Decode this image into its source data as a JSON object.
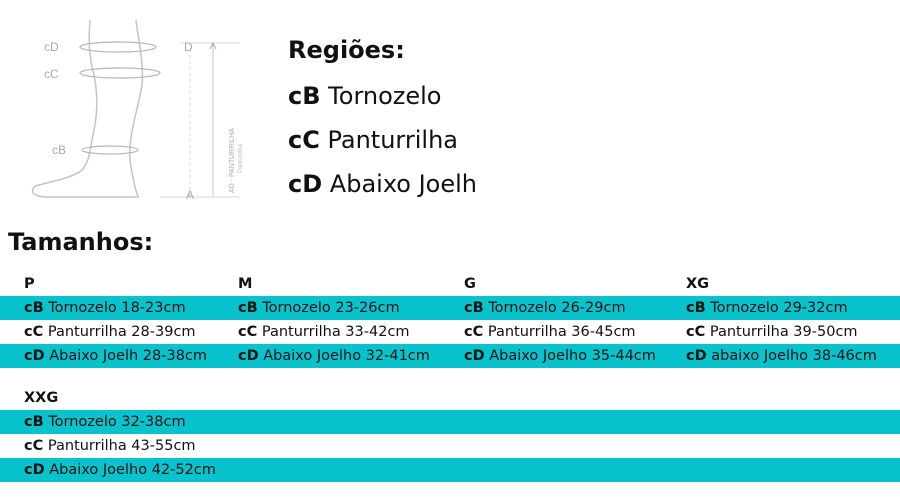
{
  "illustration": {
    "labels": {
      "cD": "cD",
      "cC": "cC",
      "cB": "cB",
      "D": "D",
      "A": "A",
      "side1": "AD - PANTURRILHA",
      "side2": "Panturrilha"
    }
  },
  "regions": {
    "title": "Regiões:",
    "items": [
      {
        "code": "cB",
        "label": "Tornozelo"
      },
      {
        "code": "cC",
        "label": "Panturrilha"
      },
      {
        "code": "cD",
        "label": "Abaixo Joelh"
      }
    ]
  },
  "sizes": {
    "title": "Tamanhos:",
    "groups": [
      {
        "sizes": [
          {
            "name": "P",
            "rows": [
              {
                "code": "cB",
                "text": "Tornozelo 18-23cm"
              },
              {
                "code": "cC",
                "text": "Panturrilha 28-39cm"
              },
              {
                "code": "cD",
                "text": "Abaixo Joelh 28-38cm"
              }
            ]
          },
          {
            "name": "M",
            "rows": [
              {
                "code": "cB",
                "text": "Tornozelo 23-26cm"
              },
              {
                "code": "cC",
                "text": "Panturrilha 33-42cm"
              },
              {
                "code": "cD",
                "text": "Abaixo Joelho 32-41cm"
              }
            ]
          },
          {
            "name": "G",
            "rows": [
              {
                "code": "cB",
                "text": "Tornozelo 26-29cm"
              },
              {
                "code": "cC",
                "text": "Panturrilha 36-45cm"
              },
              {
                "code": "cD",
                "text": "Abaixo Joelho 35-44cm"
              }
            ]
          },
          {
            "name": "XG",
            "rows": [
              {
                "code": "cB",
                "text": "Tornozelo 29-32cm"
              },
              {
                "code": "cC",
                "text": "Panturrilha 39-50cm"
              },
              {
                "code": "cD",
                "text": "abaixo Joelho 38-46cm"
              }
            ]
          }
        ]
      },
      {
        "sizes": [
          {
            "name": "XXG",
            "rows": [
              {
                "code": "cB",
                "text": "Tornozelo 32-38cm"
              },
              {
                "code": "cC",
                "text": "Panturrilha 43-55cm"
              },
              {
                "code": "cD",
                "text": "Abaixo Joelho 42-52cm"
              }
            ]
          }
        ]
      }
    ]
  },
  "colors": {
    "teal_row": "#09c3cc",
    "line_gray": "#c8c8c8",
    "label_gray": "#aaaaaa"
  }
}
